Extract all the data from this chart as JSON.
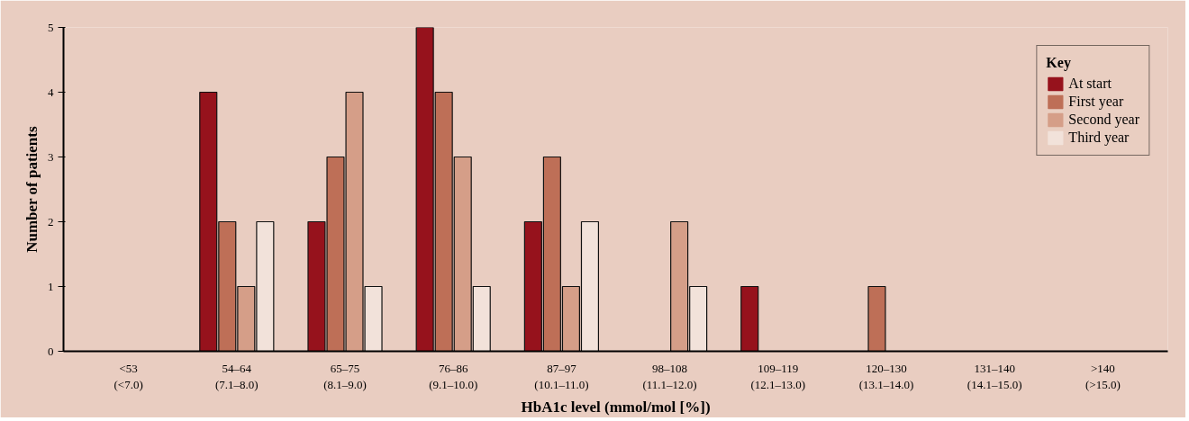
{
  "chart_data": {
    "type": "bar",
    "xlabel": "HbA1c level (mmol/mol [%])",
    "ylabel": "Number of patients",
    "categories": [
      "<53\n(<7.0)",
      "54–64\n(7.1–8.0)",
      "65–75\n(8.1–9.0)",
      "76–86\n(9.1–10.0)",
      "87–97\n(10.1–11.0)",
      "98–108\n(11.1–12.0)",
      "109–119\n(12.1–13.0)",
      "120–130\n(13.1–14.0)",
      "131–140\n(14.1–15.0)",
      ">140\n(>15.0)"
    ],
    "series": [
      {
        "name": "At start",
        "color": "#96121c",
        "values": [
          0,
          4,
          2,
          5,
          2,
          0,
          1,
          0,
          0,
          0
        ]
      },
      {
        "name": "First year",
        "color": "#be6f57",
        "values": [
          0,
          2,
          3,
          4,
          3,
          0,
          0,
          1,
          0,
          0
        ]
      },
      {
        "name": "Second year",
        "color": "#d59e88",
        "values": [
          0,
          1,
          4,
          3,
          1,
          2,
          0,
          0,
          0,
          0
        ]
      },
      {
        "name": "Third year",
        "color": "#f2e2da",
        "values": [
          0,
          2,
          1,
          1,
          2,
          1,
          0,
          0,
          0,
          0
        ]
      }
    ],
    "legend_title": "Key",
    "legend": "top right",
    "grid": false,
    "ylim": [
      0,
      5
    ],
    "yticks": [
      0,
      1,
      2,
      3,
      4,
      5
    ]
  }
}
